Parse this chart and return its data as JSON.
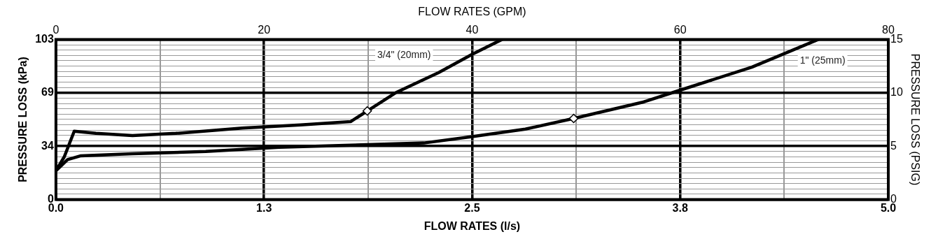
{
  "chart_data": {
    "type": "line",
    "xlabel": "FLOW RATES (l/s)",
    "x2label": "FLOW RATES (GPM)",
    "ylabel": "PRESSURE LOSS (kPa)",
    "y2label": "PRESSURE LOSS (PSIG)",
    "xlim": [
      0,
      5
    ],
    "xticks": [
      {
        "value": 0,
        "label": "0.0"
      },
      {
        "value": 0.625,
        "label": null
      },
      {
        "value": 1.25,
        "label": "1.3"
      },
      {
        "value": 1.875,
        "label": null
      },
      {
        "value": 2.5,
        "label": "2.5"
      },
      {
        "value": 3.125,
        "label": null
      },
      {
        "value": 3.75,
        "label": "3.8"
      },
      {
        "value": 4.375,
        "label": null
      },
      {
        "value": 5,
        "label": "5.0"
      }
    ],
    "x2lim": [
      0,
      80
    ],
    "x2ticks": [
      0,
      20,
      40,
      60,
      80
    ],
    "ylim": [
      0,
      103.4
    ],
    "yticks": [
      0,
      {
        "value": 34.47,
        "label": "34"
      },
      {
        "value": 68.95,
        "label": "69"
      },
      {
        "value": 103.4,
        "label": "103"
      }
    ],
    "y2lim": [
      0,
      15
    ],
    "y2ticks": [
      0,
      {
        "value": 0.5,
        "label": null
      },
      {
        "value": 1,
        "label": null
      },
      {
        "value": 1.5,
        "label": null
      },
      {
        "value": 2,
        "label": null
      },
      {
        "value": 2.5,
        "label": null
      },
      {
        "value": 3,
        "label": null
      },
      {
        "value": 3.5,
        "label": null
      },
      {
        "value": 4,
        "label": null
      },
      {
        "value": 4.5,
        "label": null
      },
      5,
      {
        "value": 5.5,
        "label": null
      },
      {
        "value": 6,
        "label": null
      },
      {
        "value": 6.5,
        "label": null
      },
      {
        "value": 7,
        "label": null
      },
      {
        "value": 7.5,
        "label": null
      },
      {
        "value": 8,
        "label": null
      },
      {
        "value": 8.5,
        "label": null
      },
      {
        "value": 9,
        "label": null
      },
      {
        "value": 9.5,
        "label": null
      },
      10,
      {
        "value": 10.5,
        "label": null
      },
      {
        "value": 11,
        "label": null
      },
      {
        "value": 11.5,
        "label": null
      },
      {
        "value": 12,
        "label": null
      },
      {
        "value": 12.5,
        "label": null
      },
      {
        "value": 13,
        "label": null
      },
      {
        "value": 13.5,
        "label": null
      },
      {
        "value": 14,
        "label": null
      },
      {
        "value": 14.5,
        "label": null
      },
      15
    ],
    "grid": true,
    "legend": false,
    "line_style": "solid",
    "series": [
      {
        "name": "3/4\" (20mm)",
        "axis": "y2",
        "color": "#000000",
        "marker": "none",
        "x": [
          0,
          0.05,
          0.11,
          0.24,
          0.46,
          0.72,
          1.12,
          1.47,
          1.77,
          1.87,
          2.04,
          2.3,
          2.5,
          2.68
        ],
        "values": [
          2.7,
          4.0,
          6.4,
          6.2,
          6.0,
          6.2,
          6.7,
          7.0,
          7.3,
          8.3,
          10.0,
          11.9,
          13.6,
          15
        ]
      },
      {
        "name": "1\" (25mm)",
        "axis": "y2",
        "color": "#000000",
        "marker": "none",
        "x": [
          0,
          0.07,
          0.15,
          0.46,
          0.9,
          1.34,
          1.77,
          2.21,
          2.5,
          2.82,
          3.11,
          3.52,
          3.74,
          4.18,
          4.58
        ],
        "values": [
          2.7,
          3.75,
          4.1,
          4.3,
          4.5,
          4.9,
          5.1,
          5.3,
          5.9,
          6.6,
          7.6,
          9.1,
          10.2,
          12.4,
          15
        ]
      },
      {
        "type": "scatter",
        "axis": "y2",
        "color": "#000000",
        "marker": "diamond",
        "x": [
          1.87
        ],
        "values": [
          8.3
        ]
      },
      {
        "type": "scatter",
        "axis": "y2",
        "color": "#000000",
        "marker": "diamond",
        "x": [
          3.11
        ],
        "values": [
          7.6
        ]
      }
    ]
  }
}
